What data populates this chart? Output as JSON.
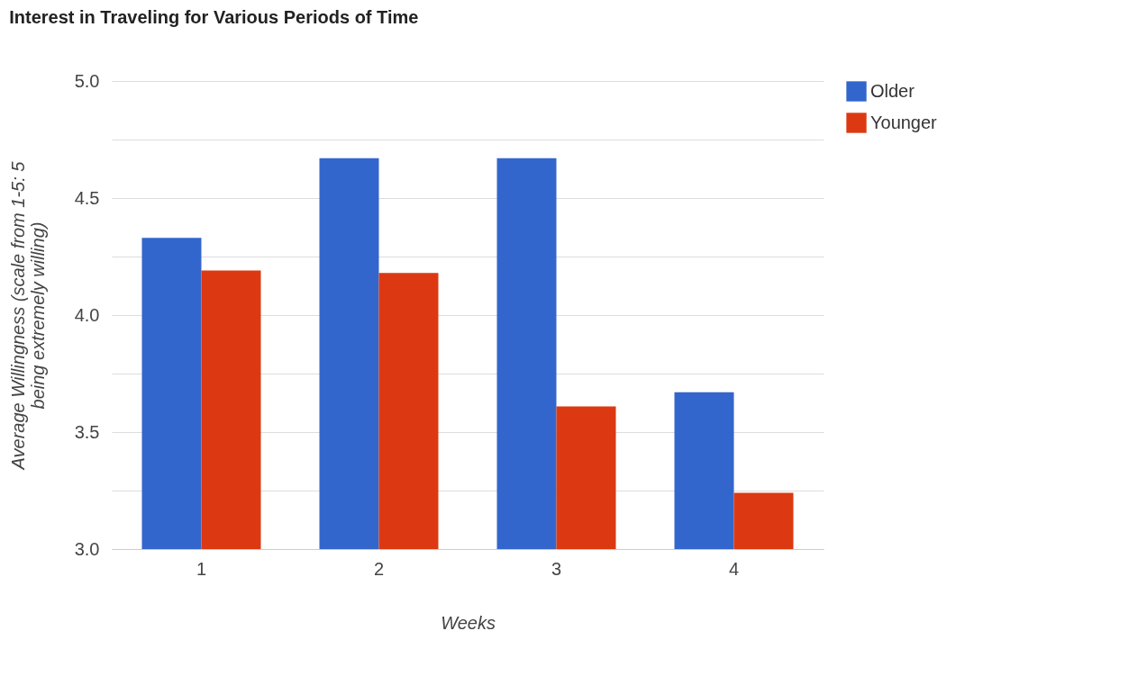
{
  "chart_data": {
    "type": "bar",
    "title": "Interest in Traveling for Various Periods of Time",
    "xlabel": "Weeks",
    "ylabel": "Average Willingness (scale from 1-5: 5 being extremely willing)",
    "categories": [
      "1",
      "2",
      "3",
      "4"
    ],
    "series": [
      {
        "name": "Older",
        "color": "#3366cc",
        "values": [
          4.33,
          4.67,
          4.67,
          3.67
        ]
      },
      {
        "name": "Younger",
        "color": "#dc3912",
        "values": [
          4.19,
          4.18,
          3.61,
          3.24
        ]
      }
    ],
    "ylim": [
      3,
      5
    ],
    "yticks": [
      {
        "value": 3,
        "label": "3.0"
      },
      {
        "value": 3.25,
        "label": null
      },
      {
        "value": 3.5,
        "label": "3.5"
      },
      {
        "value": 3.75,
        "label": null
      },
      {
        "value": 4,
        "label": "4.0"
      },
      {
        "value": 4.25,
        "label": null
      },
      {
        "value": 4.5,
        "label": "4.5"
      },
      {
        "value": 4.75,
        "label": null
      },
      {
        "value": 5,
        "label": "5.0"
      }
    ],
    "grid": "y",
    "legend": "top right"
  }
}
